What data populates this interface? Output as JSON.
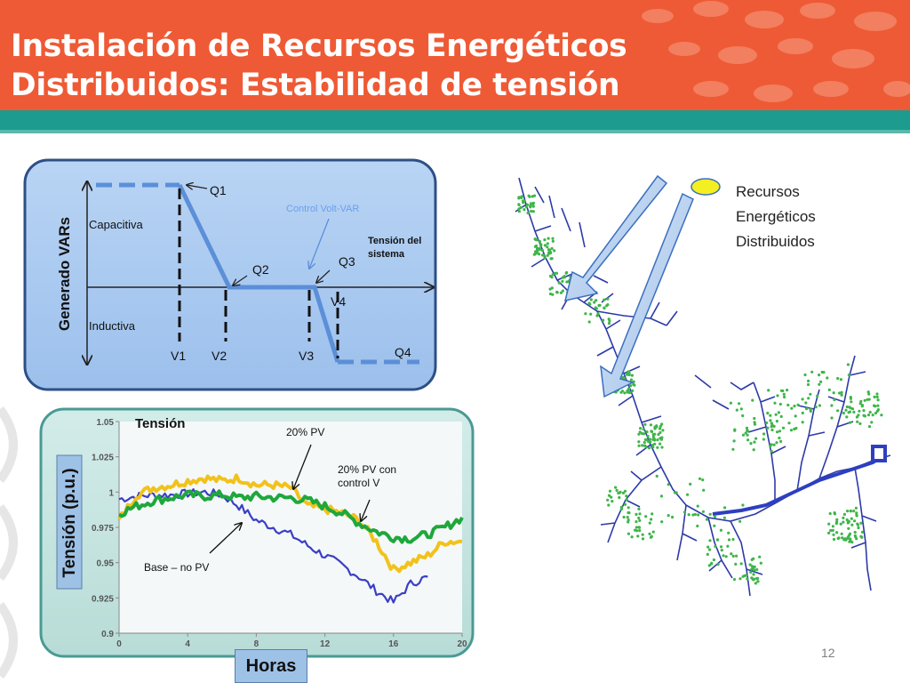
{
  "slide": {
    "title_line1": "Instalación de Recursos Energéticos",
    "title_line2": "Distribuidos: Estabilidad de tensión",
    "page_number": "12",
    "colors": {
      "header": "#ee5a35",
      "band": "#1c9b8e",
      "panel_top": "#a9c9f0",
      "panel_bottom": "#bfe0dc"
    }
  },
  "volt_var": {
    "y_label": "Generado VARs",
    "capacitive": "Capacitiva",
    "inductive": "Inductiva",
    "control_label": "Control Volt-VAR",
    "system_voltage": "Tensión del sistema",
    "q_labels": [
      "Q1",
      "Q2",
      "Q3",
      "Q4"
    ],
    "v_labels": [
      "V1",
      "V2",
      "V3",
      "V4"
    ]
  },
  "chart_data": {
    "type": "line",
    "title": "Tensión",
    "ylabel": "Tensión (p.u.)",
    "xlabel": "Horas",
    "xlim": [
      0,
      20
    ],
    "ylim": [
      0.9,
      1.05
    ],
    "x_ticks": [
      "0",
      "4",
      "8",
      "12",
      "16",
      "20"
    ],
    "y_ticks": [
      "0.9",
      "0.925",
      "0.95",
      "0.975",
      "1",
      "1.025",
      "1.05"
    ],
    "annotations": [
      "20% PV",
      "20% PV con control V",
      "Base – no PV"
    ],
    "series": [
      {
        "name": "Base – no PV",
        "color": "#3b3fc4",
        "x": [
          0,
          1,
          2,
          3,
          4,
          5,
          6,
          7,
          8,
          9,
          10,
          11,
          12,
          13,
          14,
          15,
          16,
          17,
          18
        ],
        "y": [
          0.995,
          0.997,
          0.998,
          0.998,
          0.999,
          1.0,
          0.998,
          0.99,
          0.98,
          0.975,
          0.97,
          0.962,
          0.955,
          0.948,
          0.94,
          0.93,
          0.922,
          0.935,
          0.94
        ]
      },
      {
        "name": "20% PV",
        "color": "#f2c21b",
        "x": [
          0,
          1,
          2,
          3,
          4,
          5,
          6,
          7,
          8,
          9,
          10,
          11,
          12,
          13,
          14,
          15,
          16,
          17,
          18,
          19,
          20
        ],
        "y": [
          0.98,
          0.998,
          1.003,
          1.005,
          1.008,
          1.01,
          1.008,
          1.01,
          1.005,
          1.005,
          1.003,
          0.99,
          0.988,
          0.985,
          0.98,
          0.965,
          0.945,
          0.95,
          0.955,
          0.965,
          0.965
        ]
      },
      {
        "name": "20% PV con control V",
        "color": "#1fa73c",
        "x": [
          0,
          1,
          2,
          3,
          4,
          5,
          6,
          7,
          8,
          9,
          10,
          11,
          12,
          13,
          14,
          15,
          16,
          17,
          18,
          19,
          20
        ],
        "y": [
          0.985,
          0.99,
          0.994,
          0.996,
          0.998,
          0.997,
          0.998,
          0.996,
          0.997,
          0.996,
          0.996,
          0.994,
          0.99,
          0.985,
          0.978,
          0.972,
          0.968,
          0.967,
          0.97,
          0.975,
          0.982
        ]
      }
    ]
  },
  "network": {
    "legend_label_line1": "Recursos",
    "legend_label_line2": "Energéticos",
    "legend_label_line3": "Distribuidos"
  }
}
